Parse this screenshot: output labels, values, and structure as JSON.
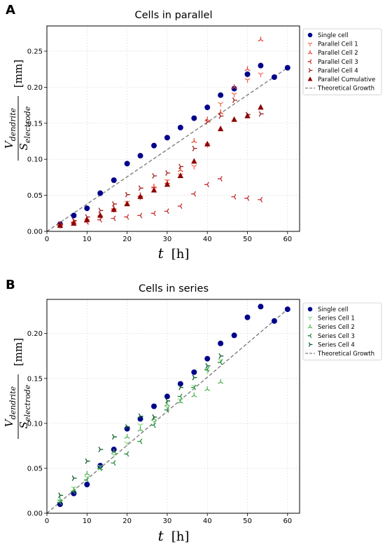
{
  "colors": {
    "single_cell": "#00008b",
    "theoretical": "#7f7f7f",
    "parallel_cell_1": "#f4705e",
    "parallel_cell_2": "#e8412c",
    "parallel_cell_3": "#c72a2a",
    "parallel_cell_4": "#a01a1a",
    "parallel_cumulative": "#8b0000",
    "series_cell_1": "#8fd98f",
    "series_cell_2": "#52b352",
    "series_cell_3": "#238b3a",
    "series_cell_4": "#0a5c2a"
  },
  "chart_data": [
    {
      "type": "scatter",
      "panel_label": "A",
      "title": "Cells in parallel",
      "xlabel_var": "t",
      "xlabel_unit": "[h]",
      "ylabel_numerator": "V",
      "ylabel_numerator_sub": "dendrite",
      "ylabel_denominator": "S",
      "ylabel_denominator_sub": "electrode",
      "ylabel_unit": "[mm]",
      "xlim": [
        0,
        63
      ],
      "ylim": [
        0,
        0.285
      ],
      "xticks": [
        0,
        10,
        20,
        30,
        40,
        50,
        60
      ],
      "yticks": [
        0.0,
        0.05,
        0.1,
        0.15,
        0.2,
        0.25
      ],
      "xtick_labels": [
        "0",
        "10",
        "20",
        "30",
        "40",
        "50",
        "60"
      ],
      "ytick_labels": [
        "0.00",
        "0.05",
        "0.10",
        "0.15",
        "0.20",
        "0.25"
      ],
      "grid": true,
      "legend_position": "top-right",
      "series": [
        {
          "name": "Single cell",
          "marker": "circle",
          "color_key": "single_cell",
          "x": [
            3.3,
            6.7,
            10,
            13.3,
            16.7,
            20,
            23.3,
            26.7,
            30,
            33.3,
            36.7,
            40,
            43.3,
            46.7,
            50,
            53.3,
            56.7,
            60
          ],
          "y": [
            0.01,
            0.022,
            0.032,
            0.053,
            0.071,
            0.094,
            0.105,
            0.119,
            0.13,
            0.144,
            0.157,
            0.172,
            0.189,
            0.198,
            0.218,
            0.23,
            0.214,
            0.227
          ]
        },
        {
          "name": "Parallel Cell 1",
          "marker": "tri-down",
          "color_key": "parallel_cell_1",
          "x": [
            3.3,
            6.7,
            10,
            13.3,
            16.7,
            20,
            23.3,
            26.7,
            30,
            33.3,
            36.7,
            40,
            43.3,
            46.7,
            50,
            53.3
          ],
          "y": [
            0.008,
            0.012,
            0.015,
            0.02,
            0.03,
            0.04,
            0.047,
            0.06,
            0.07,
            0.078,
            0.09,
            0.12,
            0.177,
            0.19,
            0.21,
            0.218
          ]
        },
        {
          "name": "Parallel Cell 2",
          "marker": "tri-up",
          "color_key": "parallel_cell_2",
          "x": [
            3.3,
            6.7,
            10,
            13.3,
            16.7,
            20,
            23.3,
            26.7,
            30,
            33.3,
            36.7,
            40,
            43.3,
            46.7,
            50,
            53.3
          ],
          "y": [
            0.01,
            0.013,
            0.016,
            0.022,
            0.032,
            0.038,
            0.05,
            0.062,
            0.068,
            0.085,
            0.125,
            0.155,
            0.165,
            0.2,
            0.225,
            0.266
          ]
        },
        {
          "name": "Parallel Cell 3",
          "marker": "tri-left",
          "color_key": "parallel_cell_3",
          "x": [
            3.3,
            6.7,
            10,
            13.3,
            16.7,
            20,
            23.3,
            26.7,
            30,
            33.3,
            36.7,
            40,
            43.3,
            46.7,
            50,
            53.3
          ],
          "y": [
            0.008,
            0.012,
            0.013,
            0.016,
            0.018,
            0.02,
            0.022,
            0.025,
            0.028,
            0.035,
            0.052,
            0.065,
            0.073,
            0.048,
            0.046,
            0.044
          ]
        },
        {
          "name": "Parallel Cell 4",
          "marker": "tri-right",
          "color_key": "parallel_cell_4",
          "x": [
            3.3,
            6.7,
            10,
            13.3,
            16.7,
            20,
            23.3,
            26.7,
            30,
            33.3,
            36.7,
            40,
            43.3,
            46.7,
            50,
            53.3
          ],
          "y": [
            0.01,
            0.015,
            0.02,
            0.029,
            0.038,
            0.051,
            0.06,
            0.077,
            0.081,
            0.09,
            0.115,
            0.152,
            0.16,
            0.182,
            0.162,
            0.163
          ]
        },
        {
          "name": "Parallel Cumulative",
          "marker": "triangle-filled",
          "color_key": "parallel_cumulative",
          "x": [
            3.3,
            6.7,
            10,
            13.3,
            16.7,
            20,
            23.3,
            26.7,
            30,
            33.3,
            36.7,
            40,
            43.3,
            46.7,
            50,
            53.3
          ],
          "y": [
            0.008,
            0.011,
            0.016,
            0.022,
            0.03,
            0.038,
            0.048,
            0.057,
            0.065,
            0.077,
            0.097,
            0.121,
            0.142,
            0.155,
            0.16,
            0.172
          ]
        }
      ],
      "line": {
        "name": "Theoretical Growth",
        "color_key": "theoretical",
        "style": "dashed",
        "x": [
          0,
          60
        ],
        "y": [
          0,
          0.227
        ]
      }
    },
    {
      "type": "scatter",
      "panel_label": "B",
      "title": "Cells in series",
      "xlabel_var": "t",
      "xlabel_unit": "[h]",
      "ylabel_numerator": "V",
      "ylabel_numerator_sub": "dendrite",
      "ylabel_denominator": "S",
      "ylabel_denominator_sub": "electrode",
      "ylabel_unit": "[mm]",
      "xlim": [
        0,
        63
      ],
      "ylim": [
        0,
        0.238
      ],
      "xticks": [
        0,
        10,
        20,
        30,
        40,
        50,
        60
      ],
      "yticks": [
        0.0,
        0.05,
        0.1,
        0.15,
        0.2
      ],
      "xtick_labels": [
        "0",
        "10",
        "20",
        "30",
        "40",
        "50",
        "60"
      ],
      "ytick_labels": [
        "0.00",
        "0.05",
        "0.10",
        "0.15",
        "0.20"
      ],
      "grid": true,
      "legend_position": "top-right",
      "series": [
        {
          "name": "Single cell",
          "marker": "circle",
          "color_key": "single_cell",
          "x": [
            3.3,
            6.7,
            10,
            13.3,
            16.7,
            20,
            23.3,
            26.7,
            30,
            33.3,
            36.7,
            40,
            43.3,
            46.7,
            50,
            53.3,
            56.7,
            60
          ],
          "y": [
            0.01,
            0.022,
            0.032,
            0.053,
            0.071,
            0.094,
            0.105,
            0.119,
            0.13,
            0.144,
            0.157,
            0.172,
            0.189,
            0.198,
            0.218,
            0.23,
            0.214,
            0.227
          ]
        },
        {
          "name": "Series Cell 1",
          "marker": "tri-down",
          "color_key": "series_cell_1",
          "x": [
            3.3,
            6.7,
            10,
            13.3,
            16.7,
            20,
            23.3,
            26.7,
            30,
            33.3,
            36.7,
            40,
            43.3
          ],
          "y": [
            0.014,
            0.028,
            0.04,
            0.052,
            0.065,
            0.078,
            0.098,
            0.102,
            0.118,
            0.126,
            0.141,
            0.158,
            0.17
          ]
        },
        {
          "name": "Series Cell 2",
          "marker": "tri-up",
          "color_key": "series_cell_2",
          "x": [
            3.3,
            6.7,
            10,
            13.3,
            16.7,
            20,
            23.3,
            26.7,
            30,
            33.3,
            36.7,
            40,
            43.3
          ],
          "y": [
            0.015,
            0.026,
            0.044,
            0.05,
            0.068,
            0.085,
            0.093,
            0.105,
            0.121,
            0.124,
            0.131,
            0.138,
            0.146
          ]
        },
        {
          "name": "Series Cell 3",
          "marker": "tri-left",
          "color_key": "series_cell_3",
          "x": [
            3.3,
            6.7,
            10,
            13.3,
            16.7,
            20,
            23.3,
            26.7,
            30,
            33.3,
            36.7,
            40,
            43.3
          ],
          "y": [
            0.012,
            0.024,
            0.037,
            0.05,
            0.056,
            0.066,
            0.08,
            0.098,
            0.115,
            0.13,
            0.14,
            0.16,
            0.168
          ]
        },
        {
          "name": "Series Cell 4",
          "marker": "tri-right",
          "color_key": "series_cell_4",
          "x": [
            3.3,
            6.7,
            10,
            13.3,
            16.7,
            20,
            23.3,
            26.7,
            30,
            33.3,
            36.7,
            40,
            43.3
          ],
          "y": [
            0.02,
            0.039,
            0.058,
            0.071,
            0.085,
            0.096,
            0.108,
            0.107,
            0.125,
            0.14,
            0.151,
            0.164,
            0.175
          ]
        }
      ],
      "line": {
        "name": "Theoretical Growth",
        "color_key": "theoretical",
        "style": "dashed",
        "x": [
          0,
          60
        ],
        "y": [
          0,
          0.227
        ]
      }
    }
  ]
}
